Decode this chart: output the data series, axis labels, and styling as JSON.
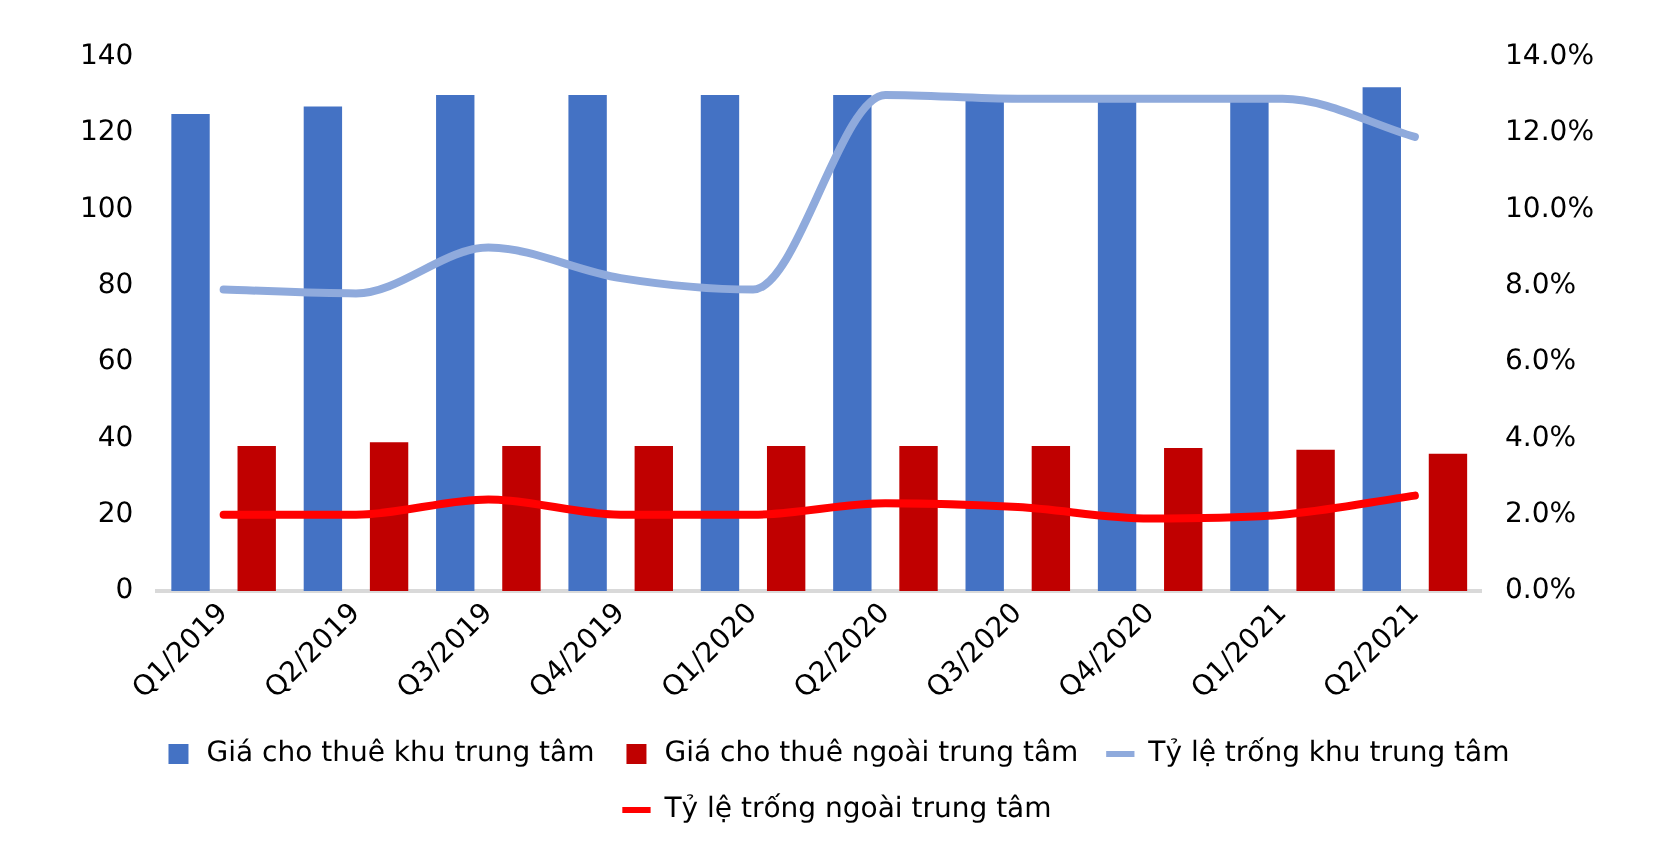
{
  "chart_data": {
    "type": "bar",
    "categories": [
      "Q1/2019",
      "Q2/2019",
      "Q3/2019",
      "Q4/2019",
      "Q1/2020",
      "Q2/2020",
      "Q3/2020",
      "Q4/2020",
      "Q1/2021",
      "Q2/2021"
    ],
    "series": [
      {
        "name": "Giá cho thuê khu trung tâm",
        "color": "#4472c4",
        "values": [
          125,
          127,
          130,
          130,
          130,
          130,
          129,
          129,
          130,
          132
        ]
      },
      {
        "name": "Giá cho thuê ngoài trung tâm",
        "color": "#c00000",
        "values": [
          38,
          39,
          38,
          38,
          38,
          38,
          38,
          37.5,
          37,
          36
        ]
      },
      {
        "name": "Tỷ lệ trống khu trung tâm",
        "type": "line",
        "axis": "y2",
        "color": "#8faadc",
        "values": [
          7.9,
          7.8,
          9.0,
          8.2,
          7.9,
          13.0,
          12.9,
          12.9,
          12.9,
          11.9
        ]
      },
      {
        "name": "Tỷ lệ trống ngoài trung tâm",
        "type": "line",
        "axis": "y2",
        "color": "#ff0000",
        "values": [
          2.0,
          2.0,
          2.4,
          2.0,
          2.0,
          2.3,
          2.2,
          1.9,
          2.0,
          2.5
        ]
      }
    ],
    "ylim": [
      0,
      140
    ],
    "yticks": [
      0,
      20,
      40,
      60,
      80,
      100,
      120,
      140
    ],
    "y2lim": [
      0,
      14
    ],
    "y2ticks": [
      {
        "value": 0,
        "label": "0.0%"
      },
      {
        "value": 2,
        "label": "2.0%"
      },
      {
        "value": 4,
        "label": "4.0%"
      },
      {
        "value": 6,
        "label": "6.0%"
      },
      {
        "value": 8,
        "label": "8.0%"
      },
      {
        "value": 10,
        "label": "10.0%"
      },
      {
        "value": 12,
        "label": "12.0%"
      },
      {
        "value": 14,
        "label": "14.0%"
      }
    ],
    "grid": false,
    "legend": "bottom",
    "marker": "none"
  }
}
